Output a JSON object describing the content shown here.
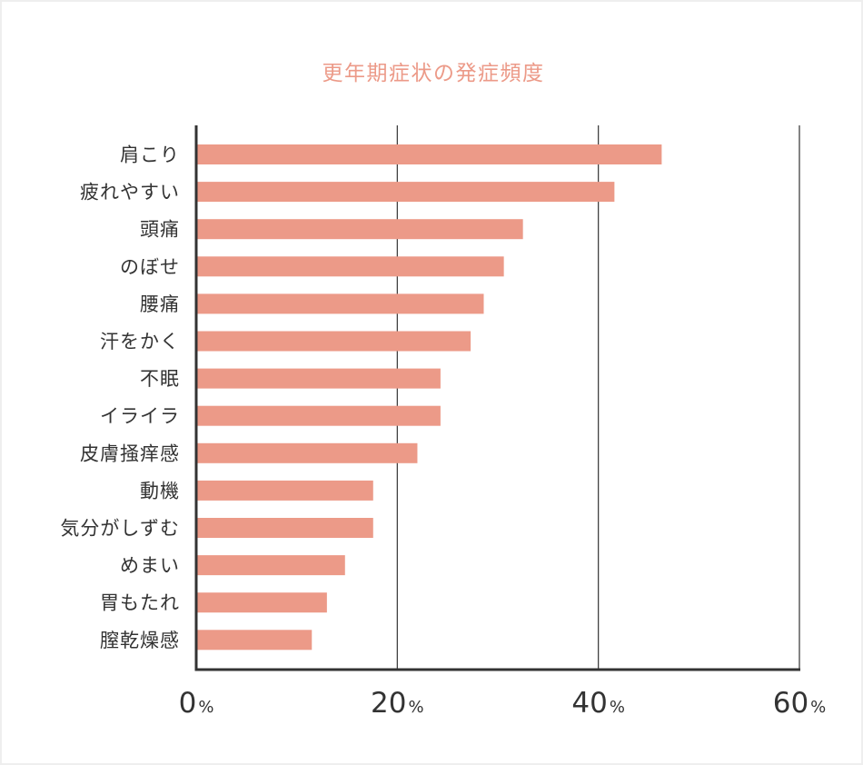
{
  "chart_data": {
    "type": "bar",
    "orientation": "horizontal",
    "title": "更年期症状の発症頻度",
    "xlabel": "",
    "ylabel": "",
    "categories": [
      "肩こり",
      "疲れやすい",
      "頭痛",
      "のぼせ",
      "腰痛",
      "汗をかく",
      "不眠",
      "イライラ",
      "皮膚掻痒感",
      "動機",
      "気分がしずむ",
      "めまい",
      "胃もたれ",
      "膣乾燥感"
    ],
    "values": [
      46.3,
      41.6,
      32.5,
      30.6,
      28.6,
      27.3,
      24.3,
      24.3,
      22.0,
      17.6,
      17.6,
      14.8,
      13.0,
      11.5
    ],
    "xlim": [
      0,
      60
    ],
    "ticks": [
      0,
      20,
      40,
      60
    ],
    "tick_labels": [
      "0",
      "20",
      "40",
      "60"
    ],
    "tick_unit": "%",
    "grid": true,
    "legend": "none",
    "bar_color": "#ec9a88",
    "axis_color": "#333333",
    "title_color": "#ec9a88"
  }
}
